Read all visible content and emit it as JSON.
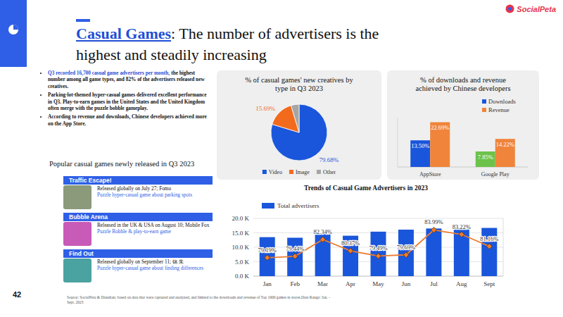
{
  "slide": {
    "page_number": "42",
    "logo": "SocialPeta",
    "title_highlight": "Casual Games",
    "title_rest": ": The number of advertisers is the highest and steadily increasing",
    "bullets": [
      {
        "highlight": "Q3 recorded 16,700 casual game advertisers per month,",
        "text": "the highest number among all game types, and 82% of the advertisers released new creatives."
      },
      {
        "text": "Parking-lot-themed hyper-casual games delivered excellent performance in Q3. Play-to-earn games in the United States and the United Kingdom often merge with the puzzle bobble gameplay."
      },
      {
        "text": "According to revenue and downloads, Chinese developers achieved more on the App Store."
      }
    ],
    "games_heading": "Popular casual games newly released in Q3 2023",
    "games": [
      {
        "name": "Traffic Escape!",
        "info": "Released globally on July 27; Fomo",
        "genre": "Puzzle hyper-casual game about parking spots"
      },
      {
        "name": "Bubble Arena",
        "info": "Released in the UK & USA on August 10; Mobile Fox",
        "genre": "Puzzle Bobble & play-to-earn game"
      },
      {
        "name": "Find Out",
        "info": "Released globally on September 11; 锦 朱",
        "genre": "Puzzle hyper-casual game about finding differences"
      }
    ],
    "source": "Source: SocialPeta & Diandian; based on data that were captured and analyzed, and limited to the downloads and revenue of Top 1000 games in stores.Date Range: Jan. - Sept. 2023"
  },
  "chart_data": [
    {
      "type": "pie",
      "title": "% of casual games' new creatives by type in Q3 2023",
      "categories": [
        "Video",
        "Image",
        "Other"
      ],
      "values": [
        79.68,
        15.69,
        4.63
      ],
      "colors": [
        "#1a56db",
        "#f26b1d",
        "#a6a6a6"
      ],
      "value_labels": [
        "79.68%",
        "15.69%",
        null
      ],
      "data_labels": true,
      "legend": "bottom"
    },
    {
      "type": "bar",
      "title": "% of downloads and revenue achieved by Chinese developers",
      "categories": [
        "AppStore",
        "Google Play"
      ],
      "series": [
        {
          "name": "Downloads",
          "color": "#1a56db",
          "colors": [
            "#1a56db",
            "#6cc24a"
          ],
          "values": [
            13.5,
            7.85
          ],
          "value_labels": [
            "13.50%",
            "7.85%"
          ]
        },
        {
          "name": "Revenue",
          "color": "#f0843a",
          "values": [
            22.69,
            14.22
          ],
          "value_labels": [
            "22.69%",
            "14.22%"
          ]
        }
      ],
      "ylim": [
        0,
        25
      ],
      "tick_labels": "x",
      "legend": "top-right",
      "data_labels": true
    },
    {
      "type": "bar",
      "title": "Trends of Casual Game Advertisers in 2023",
      "categories": [
        "Jan",
        "Feb",
        "Mar",
        "Apr",
        "May",
        "Jun",
        "Jul",
        "Aug",
        "Sept"
      ],
      "series": [
        {
          "name": "Total advertisers",
          "type": "bar",
          "color": "#1a56db",
          "values": [
            13.5,
            13.3,
            14.6,
            14.0,
            15.4,
            16.1,
            16.5,
            16.8,
            16.7
          ]
        },
        {
          "type": "line",
          "axis": "y2",
          "color": "#ed7d31",
          "marker": "diamond",
          "values": [
            79.19,
            79.44,
            82.34,
            80.37,
            79.49,
            79.69,
            83.99,
            83.22,
            81.16
          ],
          "value_labels": [
            "79.19%",
            "79.44%",
            "82.34%",
            "80.37%",
            "79.49%",
            "79.69%",
            "83.99%",
            "83.22%",
            "81.16%"
          ]
        }
      ],
      "ylim": [
        0,
        20
      ],
      "yticks": [
        {
          "value": 0,
          "label": "0.0 K"
        },
        {
          "value": 5,
          "label": "5.0 K"
        },
        {
          "value": 10,
          "label": "10.0 K"
        },
        {
          "value": 15,
          "label": "15.0 K"
        },
        {
          "value": 20,
          "label": "20.0 K"
        }
      ],
      "y2lim": [
        76,
        86
      ],
      "grid": true,
      "legend": "top-left",
      "data_labels": true
    }
  ]
}
